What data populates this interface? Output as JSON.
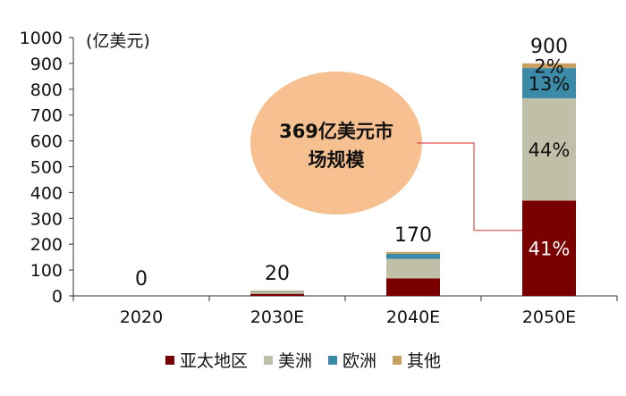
{
  "chart_data": {
    "type": "bar",
    "stacked": true,
    "unit_label": "(亿美元)",
    "categories": [
      "2020",
      "2030E",
      "2040E",
      "2050E"
    ],
    "totals": [
      "0",
      "20",
      "170",
      "900"
    ],
    "series": [
      {
        "name": "亚太地区",
        "color": "#7a0000",
        "values": [
          0,
          8,
          68,
          369
        ]
      },
      {
        "name": "美洲",
        "color": "#c0c0a8",
        "values": [
          0,
          8,
          75,
          396
        ]
      },
      {
        "name": "欧洲",
        "color": "#3a8aa8",
        "values": [
          0,
          2,
          20,
          117
        ]
      },
      {
        "name": "其他",
        "color": "#c8a060",
        "values": [
          0,
          2,
          7,
          18
        ]
      }
    ],
    "segment_labels_2050E": [
      "41%",
      "44%",
      "13%",
      "2%"
    ],
    "ylim": [
      0,
      1000
    ],
    "yticks": [
      0,
      100,
      200,
      300,
      400,
      500,
      600,
      700,
      800,
      900,
      1000
    ],
    "grid": false,
    "legend_position": "bottom",
    "callout": {
      "lines": [
        "369亿美元市",
        "场规模"
      ],
      "color": "#f7c090"
    }
  }
}
